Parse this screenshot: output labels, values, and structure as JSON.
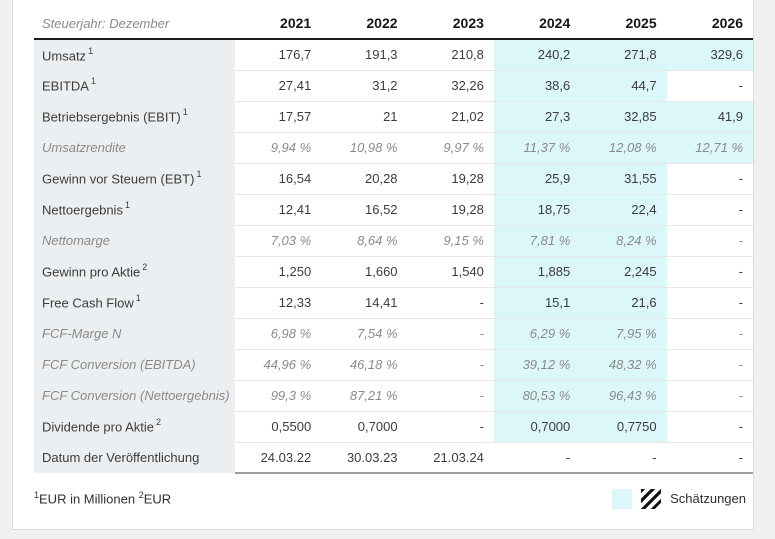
{
  "colors": {
    "estimate_bg": "#dbf7f9",
    "label_column_bg": "#eceff1",
    "page_bg": "#f0f0f0",
    "header_rule": "#1b1b1b"
  },
  "table": {
    "header": {
      "label": "Steuerjahr: Dezember",
      "years": [
        "2021",
        "2022",
        "2023",
        "2024",
        "2025",
        "2026"
      ]
    },
    "rows": [
      {
        "label": "Umsatz",
        "sup": "1",
        "italic": false,
        "values": [
          "176,7",
          "191,3",
          "210,8",
          "240,2",
          "271,8",
          "329,6"
        ],
        "est": [
          false,
          false,
          false,
          true,
          true,
          true
        ]
      },
      {
        "label": "EBITDA",
        "sup": "1",
        "italic": false,
        "values": [
          "27,41",
          "31,2",
          "32,26",
          "38,6",
          "44,7",
          "-"
        ],
        "est": [
          false,
          false,
          false,
          true,
          true,
          false
        ]
      },
      {
        "label": "Betriebsergebnis (EBIT)",
        "sup": "1",
        "italic": false,
        "values": [
          "17,57",
          "21",
          "21,02",
          "27,3",
          "32,85",
          "41,9"
        ],
        "est": [
          false,
          false,
          false,
          true,
          true,
          true
        ]
      },
      {
        "label": "Umsatzrendite",
        "sup": "",
        "italic": true,
        "values": [
          "9,94 %",
          "10,98 %",
          "9,97 %",
          "11,37 %",
          "12,08 %",
          "12,71 %"
        ],
        "est": [
          false,
          false,
          false,
          true,
          true,
          true
        ]
      },
      {
        "label": "Gewinn vor Steuern (EBT)",
        "sup": "1",
        "italic": false,
        "values": [
          "16,54",
          "20,28",
          "19,28",
          "25,9",
          "31,55",
          "-"
        ],
        "est": [
          false,
          false,
          false,
          true,
          true,
          false
        ]
      },
      {
        "label": "Nettoergebnis",
        "sup": "1",
        "italic": false,
        "values": [
          "12,41",
          "16,52",
          "19,28",
          "18,75",
          "22,4",
          "-"
        ],
        "est": [
          false,
          false,
          false,
          true,
          true,
          false
        ]
      },
      {
        "label": "Nettomarge",
        "sup": "",
        "italic": true,
        "values": [
          "7,03 %",
          "8,64 %",
          "9,15 %",
          "7,81 %",
          "8,24 %",
          "-"
        ],
        "est": [
          false,
          false,
          false,
          true,
          true,
          false
        ]
      },
      {
        "label": "Gewinn pro Aktie",
        "sup": "2",
        "italic": false,
        "values": [
          "1,250",
          "1,660",
          "1,540",
          "1,885",
          "2,245",
          "-"
        ],
        "est": [
          false,
          false,
          false,
          true,
          true,
          false
        ]
      },
      {
        "label": "Free Cash Flow",
        "sup": "1",
        "italic": false,
        "values": [
          "12,33",
          "14,41",
          "-",
          "15,1",
          "21,6",
          "-"
        ],
        "est": [
          false,
          false,
          false,
          true,
          true,
          false
        ]
      },
      {
        "label": "FCF-Marge N",
        "sup": "",
        "italic": true,
        "values": [
          "6,98 %",
          "7,54 %",
          "-",
          "6,29 %",
          "7,95 %",
          "-"
        ],
        "est": [
          false,
          false,
          false,
          true,
          true,
          false
        ]
      },
      {
        "label": "FCF Conversion (EBITDA)",
        "sup": "",
        "italic": true,
        "values": [
          "44,96 %",
          "46,18 %",
          "-",
          "39,12 %",
          "48,32 %",
          "-"
        ],
        "est": [
          false,
          false,
          false,
          true,
          true,
          false
        ]
      },
      {
        "label": "FCF Conversion (Nettoergebnis)",
        "sup": "",
        "italic": true,
        "values": [
          "99,3 %",
          "87,21 %",
          "-",
          "80,53 %",
          "96,43 %",
          "-"
        ],
        "est": [
          false,
          false,
          false,
          true,
          true,
          false
        ]
      },
      {
        "label": "Dividende pro Aktie",
        "sup": "2",
        "italic": false,
        "values": [
          "0,5500",
          "0,7000",
          "-",
          "0,7000",
          "0,7750",
          "-"
        ],
        "est": [
          false,
          false,
          false,
          true,
          true,
          false
        ]
      },
      {
        "label": "Datum der Veröffentlichung",
        "sup": "",
        "italic": false,
        "values": [
          "24.03.22",
          "30.03.23",
          "21.03.24",
          "-",
          "-",
          "-"
        ],
        "est": [
          false,
          false,
          false,
          false,
          false,
          false
        ]
      }
    ]
  },
  "footer": {
    "note1_sup": "1",
    "note1_text": "EUR in Millionen",
    "note2_sup": "2",
    "note2_text": "EUR",
    "legend_label": "Schätzungen"
  }
}
